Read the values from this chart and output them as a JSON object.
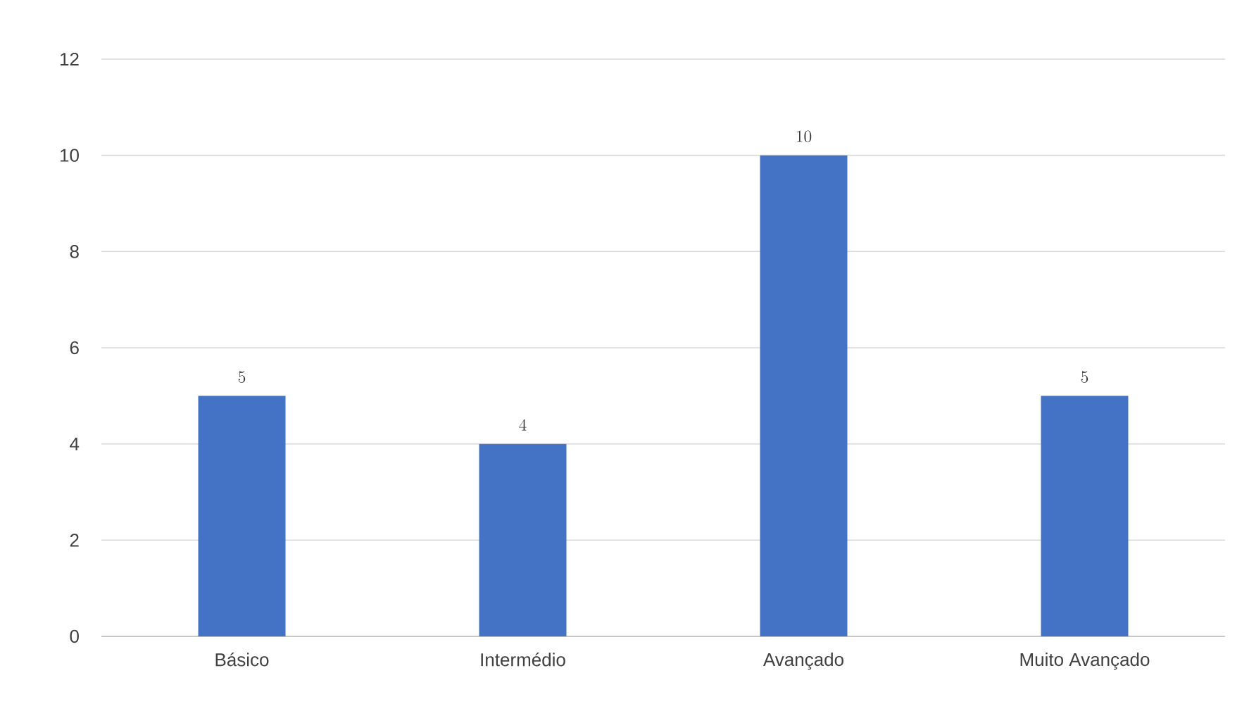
{
  "chart_data": {
    "type": "bar",
    "categories": [
      "Básico",
      "Intermédio",
      "Avançado",
      "Muito Avançado"
    ],
    "values": [
      5,
      4,
      10,
      5
    ],
    "color": "#4472c4",
    "ylim": [
      0,
      12
    ],
    "yticks": [
      0,
      2,
      4,
      6,
      8,
      10,
      12
    ],
    "grid": "y",
    "data_labels": true
  }
}
